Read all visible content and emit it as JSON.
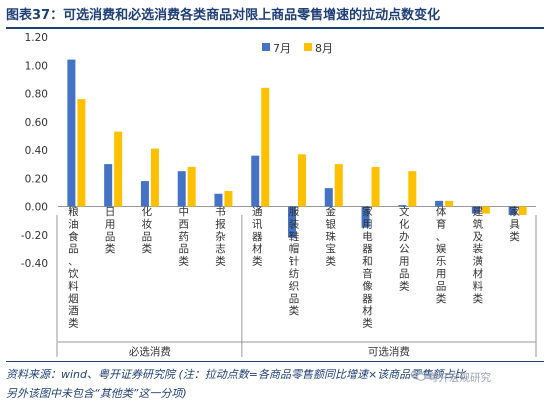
{
  "page": {
    "title": "图表37：可选消费和必选消费各类商品对限上商品零售增速的拉动点数变化",
    "source_line1": "资料来源：wind、粤开证券研究院 (注：拉动点数=各商品零售额同比增速×该商品零售额占比,",
    "source_line2": "另外该图中未包含“其他类”这一分项)",
    "watermark": "粤开宏观研究"
  },
  "colors": {
    "series_jul": "#4472C4",
    "series_aug": "#FFC000",
    "title": "#1f3f77"
  },
  "chart_data": {
    "type": "bar",
    "categories": [
      "粮油食品、饮料烟酒类",
      "日用品类",
      "化妆品类",
      "中西药品类",
      "书报杂志类",
      "通讯器材类",
      "服装鞋帽针纺织品类",
      "金银珠宝类",
      "家用电器和音像器材类",
      "文化办公用品类",
      "体育、娱乐用品类",
      "建筑及装潢材料类",
      "家具类"
    ],
    "series": [
      {
        "name": "7月",
        "values": [
          1.04,
          0.3,
          0.18,
          0.25,
          0.09,
          0.36,
          -0.22,
          0.13,
          -0.15,
          0.01,
          0.04,
          -0.05,
          -0.06
        ]
      },
      {
        "name": "8月",
        "values": [
          0.76,
          0.53,
          0.41,
          0.28,
          0.11,
          0.84,
          0.37,
          0.3,
          0.28,
          0.25,
          0.04,
          -0.05,
          -0.06
        ]
      }
    ],
    "groups": [
      {
        "label": "必选消费",
        "from": 0,
        "to": 4
      },
      {
        "label": "可选消费",
        "from": 5,
        "to": 12
      }
    ],
    "ylim": [
      -0.4,
      1.2
    ],
    "yticks": [
      "1.20",
      "1.00",
      "0.80",
      "0.60",
      "0.40",
      "0.20",
      "0.00",
      "-0.20",
      "-0.40"
    ],
    "legend_position": "top-center",
    "grid": false
  }
}
